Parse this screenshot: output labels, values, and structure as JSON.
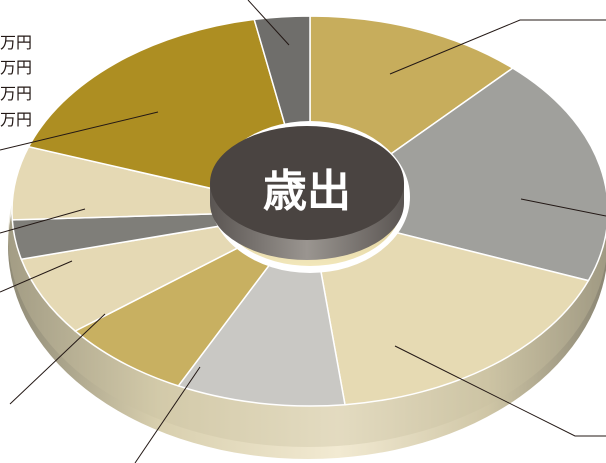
{
  "chart_data": {
    "type": "pie",
    "title": "歳出",
    "values": [
      14.3,
      22.7,
      20.8,
      11.0,
      8.6,
      7.9,
      3.9,
      7.3,
      20.0,
      3.6
    ],
    "colors": [
      "#c7ad5c",
      "#a0a09c",
      "#e6dab3",
      "#c9c8c4",
      "#c8b061",
      "#e5d9b4",
      "#7f7e79",
      "#e5d9b4",
      "#ad8e22",
      "#6f6e6b"
    ],
    "legend": "none",
    "partial_labels": [
      "万円",
      "万円",
      "万円",
      "万円"
    ]
  }
}
